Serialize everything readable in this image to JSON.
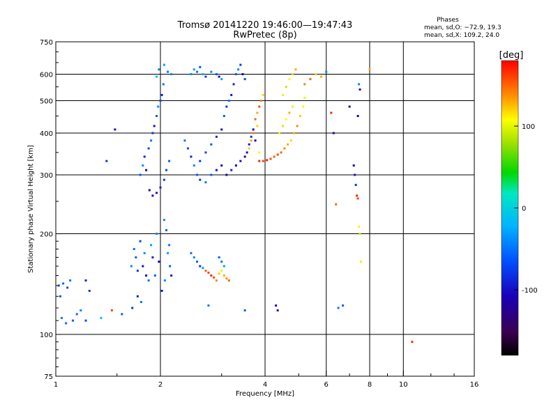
{
  "chart_data": {
    "type": "scatter",
    "title": "Tromsø 20141220 19:46:00—19:47:43",
    "subtitle": "RwPretec (8p)",
    "xlabel": "Frequency [MHz]",
    "ylabel": "Stationary phase Virtual Height [km]",
    "x_scale": "log",
    "y_scale": "log",
    "xlim": [
      1,
      16
    ],
    "ylim": [
      75,
      750
    ],
    "x_ticks": [
      1,
      2,
      4,
      6,
      8,
      10,
      16
    ],
    "y_ticks": [
      75,
      100,
      200,
      300,
      400,
      500,
      600,
      750
    ],
    "x_grid": [
      2,
      4,
      6,
      8,
      10
    ],
    "y_grid": [
      100,
      200,
      300,
      400,
      500,
      600
    ],
    "legend": {
      "title": "Phases",
      "line1": "mean, sd,O: −72.9, 19.3",
      "line2": "mean, sd,X: 109.2, 24.0"
    },
    "colorbar": {
      "label": "[deg]",
      "ticks": [
        100,
        0,
        -100
      ],
      "range": [
        -180,
        180
      ]
    },
    "series": [
      {
        "points": [
          [
            1.02,
            140,
            -60
          ],
          [
            1.05,
            142,
            -55
          ],
          [
            1.08,
            138,
            -70
          ],
          [
            1.03,
            130,
            -65
          ],
          [
            1.1,
            145,
            -50
          ],
          [
            1.04,
            112,
            -45
          ],
          [
            1.07,
            108,
            -50
          ],
          [
            1.12,
            110,
            -60
          ],
          [
            1.15,
            115,
            -55
          ],
          [
            1.18,
            118,
            -40
          ],
          [
            1.22,
            110,
            -70
          ],
          [
            1.35,
            112,
            -20
          ],
          [
            1.45,
            118,
            160
          ],
          [
            1.55,
            115,
            -60
          ],
          [
            1.25,
            135,
            -80
          ],
          [
            1.22,
            145,
            -90
          ],
          [
            1.4,
            330,
            -80
          ],
          [
            1.48,
            410,
            -100
          ],
          [
            1.65,
            160,
            -40
          ],
          [
            1.7,
            170,
            -60
          ],
          [
            1.72,
            155,
            -80
          ],
          [
            1.68,
            180,
            -50
          ],
          [
            1.75,
            190,
            -70
          ],
          [
            1.8,
            175,
            -40
          ],
          [
            1.78,
            160,
            -100
          ],
          [
            1.82,
            150,
            -110
          ],
          [
            1.85,
            145,
            -50
          ],
          [
            1.88,
            185,
            -30
          ],
          [
            1.9,
            170,
            -90
          ],
          [
            1.93,
            150,
            -60
          ],
          [
            1.95,
            200,
            -40
          ],
          [
            1.98,
            165,
            -110
          ],
          [
            2.02,
            135,
            -90
          ],
          [
            2.06,
            145,
            -40
          ],
          [
            2.1,
            175,
            -30
          ],
          [
            2.13,
            160,
            -60
          ],
          [
            2.15,
            150,
            -100
          ],
          [
            2.12,
            185,
            -50
          ],
          [
            1.72,
            130,
            -90
          ],
          [
            1.76,
            125,
            -50
          ],
          [
            1.66,
            120,
            -80
          ],
          [
            2.05,
            220,
            -40
          ],
          [
            2.08,
            205,
            -60
          ],
          [
            1.75,
            300,
            -60
          ],
          [
            1.78,
            320,
            -40
          ],
          [
            1.8,
            340,
            -90
          ],
          [
            1.82,
            310,
            -110
          ],
          [
            1.85,
            360,
            -70
          ],
          [
            1.88,
            380,
            -50
          ],
          [
            1.9,
            400,
            -80
          ],
          [
            1.92,
            420,
            -100
          ],
          [
            1.95,
            450,
            -60
          ],
          [
            1.97,
            480,
            -40
          ],
          [
            2.0,
            500,
            -70
          ],
          [
            2.02,
            520,
            -90
          ],
          [
            2.04,
            560,
            -50
          ],
          [
            1.86,
            270,
            -120
          ],
          [
            1.9,
            260,
            -110
          ],
          [
            1.95,
            265,
            -100
          ],
          [
            2.0,
            275,
            -90
          ],
          [
            2.05,
            290,
            -80
          ],
          [
            2.08,
            310,
            -70
          ],
          [
            2.12,
            330,
            -60
          ],
          [
            1.98,
            620,
            -40
          ],
          [
            2.05,
            640,
            -30
          ],
          [
            2.1,
            610,
            -50
          ],
          [
            1.95,
            590,
            -20
          ],
          [
            2.15,
            600,
            -40
          ],
          [
            2.45,
            600,
            -40
          ],
          [
            2.5,
            620,
            -30
          ],
          [
            2.55,
            610,
            -50
          ],
          [
            2.6,
            630,
            -60
          ],
          [
            2.65,
            600,
            -20
          ],
          [
            2.7,
            590,
            -80
          ],
          [
            2.8,
            610,
            -40
          ],
          [
            2.9,
            600,
            -60
          ],
          [
            2.95,
            590,
            -110
          ],
          [
            3.0,
            580,
            -30
          ],
          [
            2.35,
            380,
            -50
          ],
          [
            2.4,
            360,
            -70
          ],
          [
            2.45,
            340,
            -90
          ],
          [
            2.5,
            320,
            -40
          ],
          [
            2.55,
            300,
            -60
          ],
          [
            2.6,
            290,
            -80
          ],
          [
            2.7,
            285,
            -50
          ],
          [
            2.8,
            300,
            -60
          ],
          [
            2.9,
            310,
            -100
          ],
          [
            3.0,
            320,
            -110
          ],
          [
            2.6,
            330,
            -80
          ],
          [
            2.7,
            350,
            -70
          ],
          [
            2.8,
            370,
            -60
          ],
          [
            2.9,
            390,
            -90
          ],
          [
            3.0,
            410,
            -100
          ],
          [
            3.1,
            300,
            -110
          ],
          [
            3.2,
            310,
            -90
          ],
          [
            3.3,
            320,
            -120
          ],
          [
            3.4,
            330,
            -100
          ],
          [
            3.5,
            340,
            -110
          ],
          [
            3.05,
            450,
            -60
          ],
          [
            3.1,
            480,
            -80
          ],
          [
            3.15,
            500,
            -50
          ],
          [
            3.2,
            520,
            -100
          ],
          [
            3.25,
            560,
            -90
          ],
          [
            3.3,
            600,
            -60
          ],
          [
            3.35,
            620,
            -40
          ],
          [
            3.4,
            640,
            -80
          ],
          [
            3.45,
            600,
            -110
          ],
          [
            3.5,
            580,
            -70
          ],
          [
            3.55,
            350,
            -100
          ],
          [
            3.6,
            370,
            -90
          ],
          [
            3.65,
            390,
            -80
          ],
          [
            3.7,
            410,
            -120
          ],
          [
            3.75,
            380,
            -110
          ],
          [
            3.6,
            360,
            120
          ],
          [
            3.65,
            380,
            130
          ],
          [
            3.7,
            400,
            140
          ],
          [
            3.8,
            420,
            120
          ],
          [
            3.85,
            350,
            110
          ],
          [
            3.75,
            440,
            150
          ],
          [
            3.8,
            460,
            130
          ],
          [
            3.85,
            480,
            160
          ],
          [
            3.9,
            500,
            140
          ],
          [
            3.95,
            520,
            120
          ],
          [
            3.85,
            330,
            170
          ],
          [
            3.95,
            330,
            160
          ],
          [
            4.05,
            332,
            170
          ],
          [
            4.15,
            335,
            160
          ],
          [
            4.25,
            340,
            150
          ],
          [
            4.35,
            345,
            160
          ],
          [
            4.45,
            350,
            150
          ],
          [
            4.55,
            360,
            140
          ],
          [
            4.65,
            370,
            130
          ],
          [
            4.75,
            380,
            120
          ],
          [
            4.85,
            400,
            130
          ],
          [
            4.95,
            420,
            140
          ],
          [
            5.05,
            450,
            120
          ],
          [
            5.15,
            480,
            110
          ],
          [
            5.2,
            510,
            100
          ],
          [
            4.4,
            400,
            100
          ],
          [
            4.5,
            420,
            120
          ],
          [
            4.6,
            440,
            110
          ],
          [
            4.7,
            460,
            130
          ],
          [
            4.8,
            480,
            100
          ],
          [
            4.5,
            520,
            100
          ],
          [
            4.6,
            550,
            90
          ],
          [
            4.7,
            580,
            110
          ],
          [
            4.8,
            600,
            120
          ],
          [
            4.9,
            620,
            130
          ],
          [
            5.2,
            560,
            140
          ],
          [
            5.4,
            580,
            150
          ],
          [
            5.6,
            600,
            120
          ],
          [
            5.8,
            590,
            130
          ],
          [
            6.0,
            610,
            -40
          ],
          [
            2.45,
            175,
            -50
          ],
          [
            2.5,
            170,
            -40
          ],
          [
            2.55,
            165,
            -60
          ],
          [
            2.6,
            160,
            -80
          ],
          [
            2.65,
            158,
            -30
          ],
          [
            2.7,
            155,
            150
          ],
          [
            2.75,
            153,
            160
          ],
          [
            2.8,
            150,
            170
          ],
          [
            2.85,
            148,
            160
          ],
          [
            2.9,
            145,
            140
          ],
          [
            2.95,
            152,
            120
          ],
          [
            3.0,
            155,
            100
          ],
          [
            3.05,
            150,
            130
          ],
          [
            3.1,
            147,
            140
          ],
          [
            3.15,
            145,
            150
          ],
          [
            2.95,
            170,
            -60
          ],
          [
            3.0,
            165,
            -50
          ],
          [
            3.05,
            160,
            -30
          ],
          [
            2.75,
            122,
            -50
          ],
          [
            3.5,
            118,
            -60
          ],
          [
            4.3,
            122,
            -110
          ],
          [
            4.35,
            118,
            -100
          ],
          [
            6.5,
            120,
            -50
          ],
          [
            6.7,
            122,
            -60
          ],
          [
            6.4,
            245,
            150
          ],
          [
            6.2,
            460,
            170
          ],
          [
            6.3,
            400,
            -110
          ],
          [
            7.0,
            480,
            -110
          ],
          [
            7.2,
            320,
            -110
          ],
          [
            7.25,
            300,
            -100
          ],
          [
            7.3,
            280,
            -80
          ],
          [
            7.35,
            260,
            170
          ],
          [
            7.4,
            255,
            160
          ],
          [
            7.45,
            210,
            110
          ],
          [
            7.5,
            200,
            90
          ],
          [
            7.55,
            165,
            100
          ],
          [
            7.5,
            540,
            -100
          ],
          [
            7.45,
            560,
            -40
          ],
          [
            7.4,
            450,
            -120
          ],
          [
            8.0,
            620,
            130
          ],
          [
            10.6,
            95,
            170
          ]
        ]
      }
    ]
  }
}
